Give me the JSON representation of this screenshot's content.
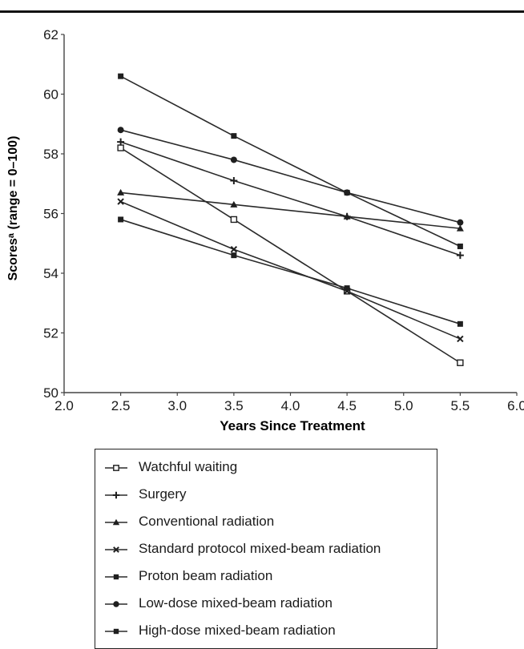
{
  "chart_data": {
    "type": "line",
    "xlabel": "Years Since Treatment",
    "ylabel": "Scoresᵃ (range = 0–100)",
    "xlim": [
      2.0,
      6.0
    ],
    "ylim": [
      50,
      62
    ],
    "xticks": [
      "2.0",
      "2.5",
      "3.0",
      "3.5",
      "4.0",
      "4.5",
      "5.0",
      "5.5",
      "6.0"
    ],
    "yticks": [
      "50",
      "52",
      "54",
      "56",
      "58",
      "60",
      "62"
    ],
    "x": [
      2.5,
      3.5,
      4.5,
      5.5
    ],
    "grid": false,
    "legend_position": "bottom",
    "series": [
      {
        "name": "Watchful waiting",
        "marker": "open-square",
        "values": [
          58.2,
          55.8,
          53.4,
          51.0
        ]
      },
      {
        "name": "Surgery",
        "marker": "plus",
        "values": [
          58.4,
          57.1,
          55.9,
          54.6
        ]
      },
      {
        "name": "Conventional radiation",
        "marker": "triangle",
        "values": [
          56.7,
          56.3,
          55.9,
          55.5
        ]
      },
      {
        "name": "Standard protocol mixed-beam radiation",
        "marker": "x",
        "values": [
          56.4,
          54.8,
          53.4,
          51.8
        ]
      },
      {
        "name": "Proton beam radiation",
        "marker": "filled-square",
        "values": [
          55.8,
          54.6,
          53.5,
          52.3
        ]
      },
      {
        "name": "Low-dose mixed-beam radiation",
        "marker": "filled-circle",
        "values": [
          58.8,
          57.8,
          56.7,
          55.7
        ]
      },
      {
        "name": "High-dose mixed-beam radiation",
        "marker": "filled-square",
        "values": [
          60.6,
          58.6,
          56.7,
          54.9
        ]
      }
    ]
  }
}
